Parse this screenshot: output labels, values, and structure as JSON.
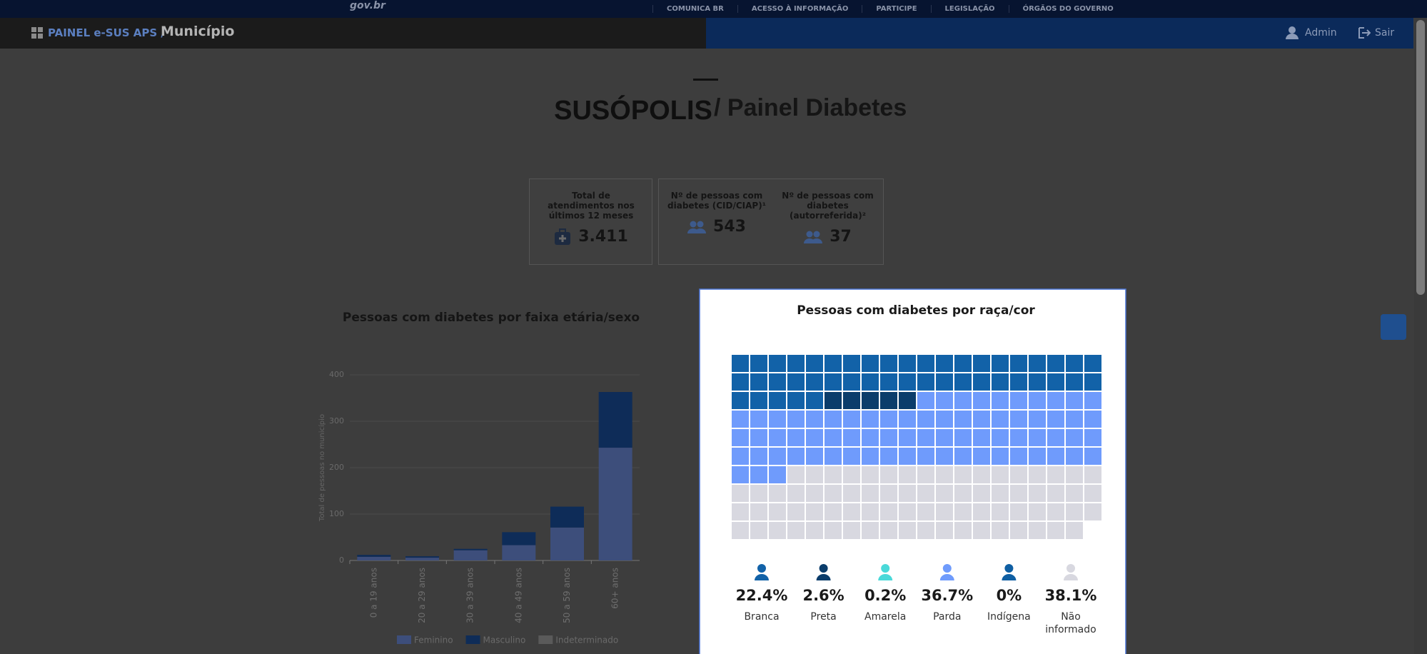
{
  "header": {
    "logo": "gov.br",
    "links": [
      "COMUNICA BR",
      "ACESSO À INFORMAÇÃO",
      "PARTICIPE",
      "LEGISLAÇÃO",
      "ÓRGÃOS DO GOVERNO"
    ],
    "breadcrumb": "PAINEL e-SUS APS /",
    "page": "Município",
    "user": "Admin",
    "logout": "Sair"
  },
  "title": {
    "place": "SUSÓPOLIS",
    "panel": "/ Painel Diabetes"
  },
  "cards": [
    {
      "label": "Total de atendimentos nos últimos 12 meses",
      "value": "3.411"
    },
    {
      "label": "Nº de pessoas com diabetes (CID/CIAP)¹",
      "value": "543"
    },
    {
      "label": "Nº de pessoas com diabetes (autorreferida)²",
      "value": "37"
    }
  ],
  "chart_data": [
    {
      "type": "bar",
      "stacked": true,
      "title": "Pessoas com diabetes por faixa etária/sexo",
      "y_label": "Total de pessoas no município",
      "categories": [
        "0 a 19 anos",
        "20 a 29 anos",
        "30 a 39 anos",
        "40 a 49 anos",
        "50 a 59 anos",
        "60+ anos"
      ],
      "series": [
        {
          "name": "Feminino",
          "color": "#3d4e7b",
          "values": [
            8,
            6,
            22,
            33,
            71,
            243
          ]
        },
        {
          "name": "Masculino",
          "color": "#0e2c58",
          "values": [
            4,
            3,
            3,
            28,
            45,
            120
          ]
        },
        {
          "name": "Indeterminado",
          "color": "#5a5a5a",
          "values": [
            0,
            0,
            0,
            0,
            0,
            0
          ]
        }
      ],
      "ylim": [
        0,
        400
      ],
      "yticks": [
        0,
        100,
        200,
        300,
        400
      ],
      "grid": true,
      "legend": "bottom"
    },
    {
      "type": "waffle",
      "title": "Pessoas com diabetes por raça/cor",
      "categories": [
        "Branca",
        "Preta",
        "Amarela",
        "Parda",
        "Indígena",
        "Não informado"
      ],
      "values": [
        22.4,
        2.6,
        0.2,
        36.7,
        0,
        38.1
      ],
      "value_labels": [
        "22.4%",
        "2.6%",
        "0.2%",
        "36.7%",
        "0%",
        "38.1%"
      ],
      "colors": [
        "#1262a8",
        "#0b3d6b",
        "#4ad9d9",
        "#6f9bfc",
        "#0f5fa3",
        "#d8d8e0"
      ]
    }
  ]
}
